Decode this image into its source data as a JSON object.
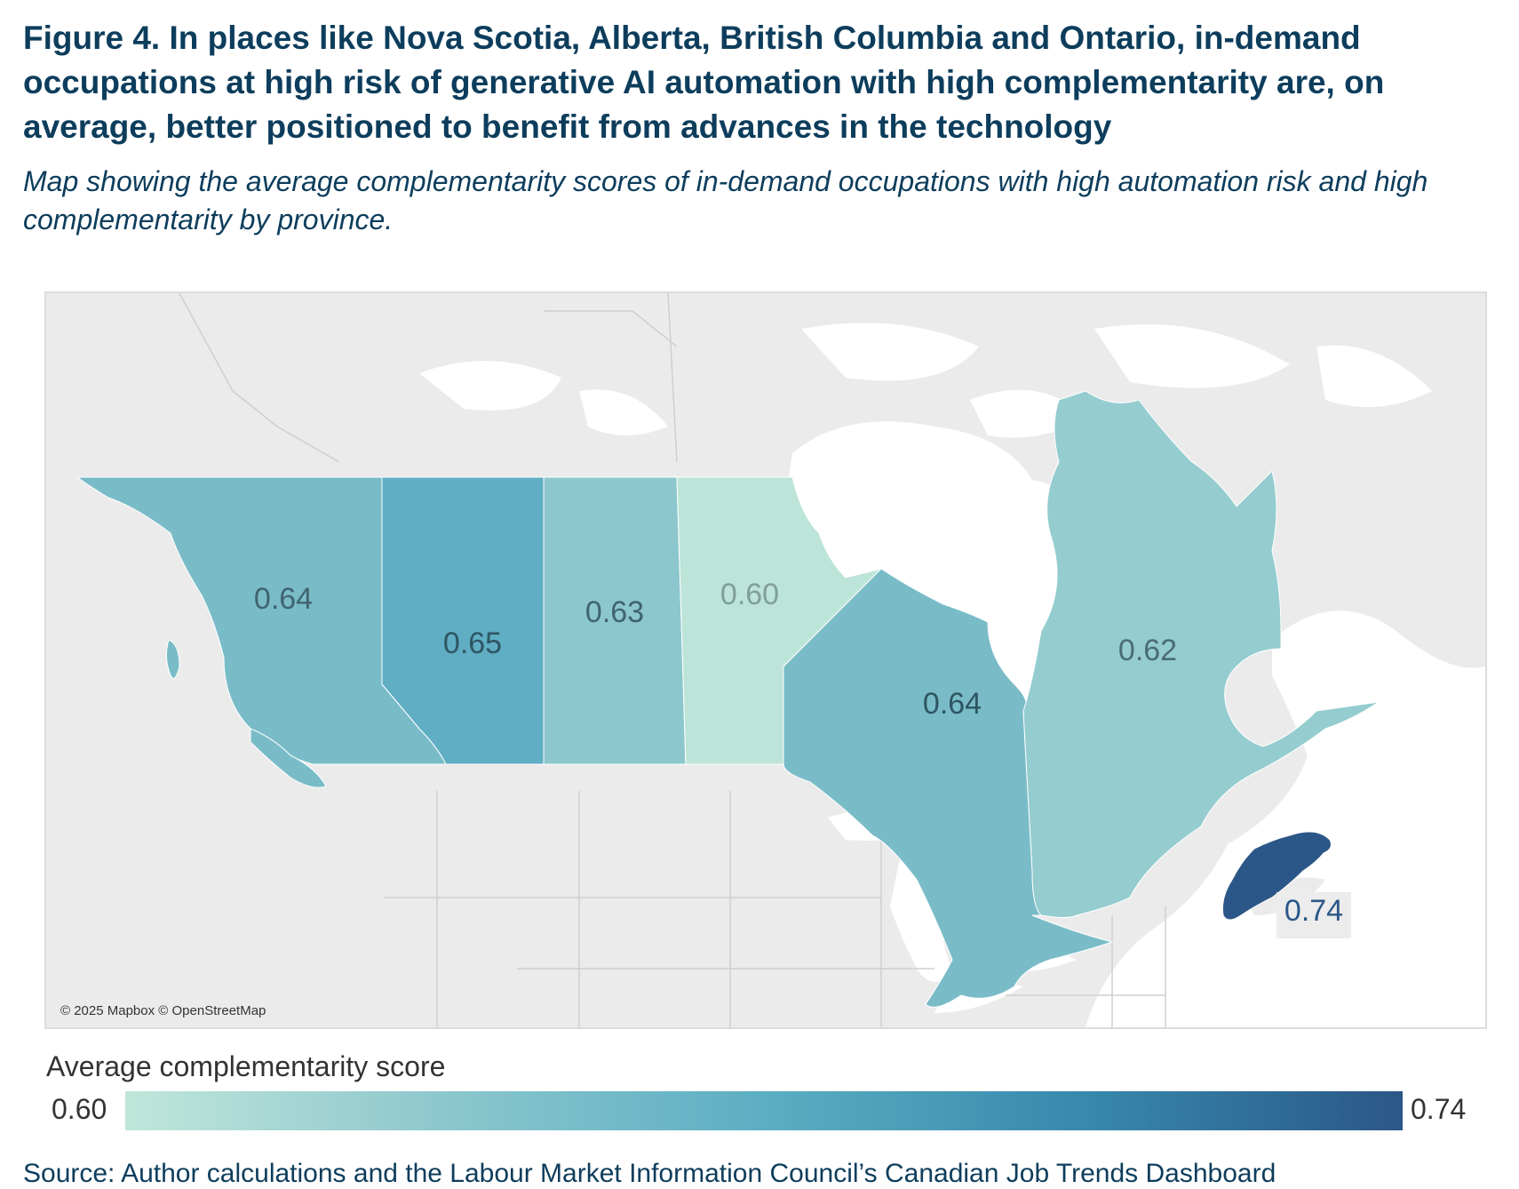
{
  "title": "Figure 4. In places like Nova Scotia, Alberta, British Columbia and Ontario, in-demand occupations at high risk of generative AI automation with high complementarity are, on average, better positioned to benefit from advances in the technology",
  "subtitle": "Map showing the average complementarity scores of in-demand occupations with high automation risk and high complementarity by province.",
  "map": {
    "attribution": "© 2025 Mapbox © OpenStreetMap",
    "regions": [
      {
        "name": "British Columbia",
        "value": 0.64,
        "label": "0.64",
        "color": "#79bcc8"
      },
      {
        "name": "Alberta",
        "value": 0.65,
        "label": "0.65",
        "color": "#5faec4"
      },
      {
        "name": "Saskatchewan",
        "value": 0.63,
        "label": "0.63",
        "color": "#8cc7cd"
      },
      {
        "name": "Manitoba",
        "value": 0.6,
        "label": "0.60",
        "color": "#bde4d9"
      },
      {
        "name": "Ontario",
        "value": 0.64,
        "label": "0.64",
        "color": "#79bcc8"
      },
      {
        "name": "Quebec",
        "value": 0.62,
        "label": "0.62",
        "color": "#94cccf"
      },
      {
        "name": "Nova Scotia",
        "value": 0.74,
        "label": "0.74",
        "color": "#2b5788"
      }
    ]
  },
  "legend": {
    "title": "Average complementarity score",
    "min": "0.60",
    "max": "0.74",
    "colors": [
      "#c0e6da",
      "#8cc7cd",
      "#5caec3",
      "#3789ad",
      "#2b5788"
    ]
  },
  "source": "Source: Author calculations and the Labour Market Information Council’s Canadian Job Trends Dashboard"
}
